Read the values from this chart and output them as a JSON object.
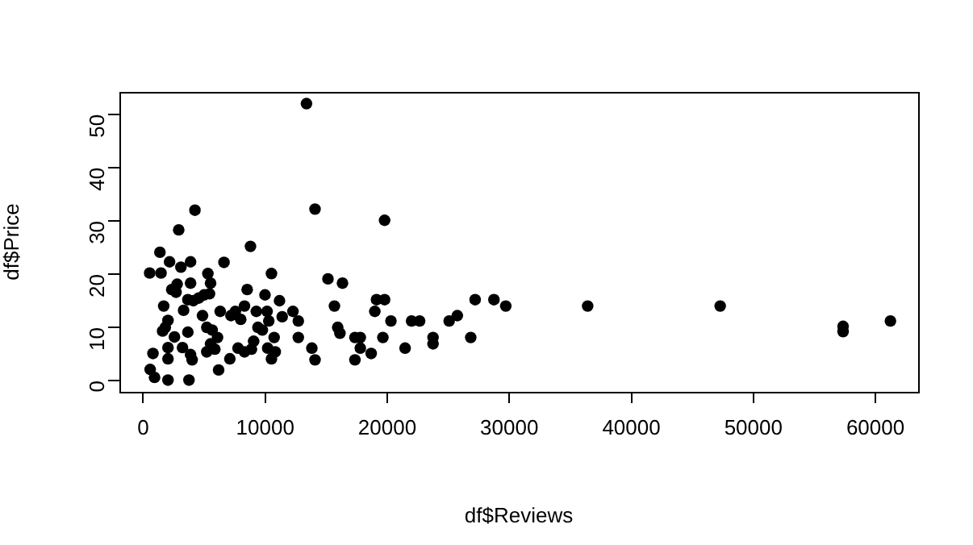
{
  "chart_data": {
    "type": "scatter",
    "xlabel": "df$Reviews",
    "ylabel": "df$Price",
    "xlim": [
      -1950,
      63500
    ],
    "ylim": [
      -2.1,
      54.2
    ],
    "xticks": [
      0,
      10000,
      20000,
      30000,
      40000,
      50000,
      60000
    ],
    "yticks": [
      0,
      10,
      20,
      30,
      40,
      50
    ],
    "grid": false,
    "legend": false,
    "marker": "circle",
    "series": [
      {
        "color": "#000000",
        "x": [
          13380,
          4240,
          2910,
          1370,
          8790,
          530,
          1460,
          2160,
          3090,
          3880,
          6620,
          5300,
          10510,
          2780,
          2340,
          2690,
          3880,
          5520,
          8520,
          3660,
          4110,
          4550,
          4990,
          5430,
          3310,
          1680,
          9980,
          11170,
          6310,
          7190,
          7550,
          8300,
          7990,
          9270,
          10150,
          9400,
          10290,
          11390,
          12270,
          12710,
          12710,
          2030,
          1810,
          1590,
          2560,
          3660,
          4860,
          5210,
          5650,
          6090,
          5520,
          5870,
          5210,
          3220,
          2030,
          800,
          2030,
          3880,
          4010,
          7100,
          7770,
          8300,
          8870,
          9050,
          9760,
          10200,
          10510,
          10820,
          10730,
          570,
          930,
          2030,
          3750,
          6180,
          14080,
          19780,
          15140,
          16330,
          13820,
          14080,
          15670,
          15940,
          16120,
          17350,
          17790,
          17790,
          17350,
          18680,
          18980,
          19120,
          19780,
          20300,
          19640,
          21460,
          21990,
          22650,
          23750,
          23750,
          25070,
          25740,
          26840,
          27200,
          28740,
          29710,
          36420,
          47280,
          57350,
          57350,
          61230
        ],
        "values": [
          52,
          32,
          28.3,
          24.1,
          25.2,
          20.2,
          20.2,
          22.3,
          21.3,
          22.3,
          22.2,
          20.1,
          20.1,
          18.1,
          17.1,
          16.6,
          18.3,
          18.3,
          17.1,
          15.2,
          15,
          15.5,
          16.1,
          16.3,
          13.2,
          14,
          16.1,
          15,
          13,
          12.2,
          13,
          14,
          11.5,
          13,
          13,
          10,
          11.2,
          12,
          13,
          11.2,
          8.1,
          11.3,
          10,
          9.3,
          8.2,
          9.1,
          12.2,
          10,
          9.5,
          8.1,
          6.9,
          5.9,
          5.4,
          6.2,
          6.2,
          5.1,
          4.1,
          4.9,
          3.9,
          4.1,
          6.1,
          5.4,
          5.9,
          7.4,
          9.5,
          6.1,
          4.1,
          5.4,
          8.1,
          2.1,
          0.6,
          0.1,
          0.1,
          2,
          32.2,
          30.1,
          19.1,
          18.3,
          6.1,
          3.9,
          14,
          10,
          8.9,
          8.1,
          8.1,
          6.1,
          3.9,
          5.1,
          13,
          15.2,
          15.2,
          11.2,
          8.1,
          6.1,
          11.2,
          11.2,
          8.1,
          6.9,
          11.2,
          12.2,
          8.1,
          15.2,
          15.2,
          14,
          14,
          14,
          10.2,
          9.2,
          11.2
        ]
      }
    ]
  }
}
